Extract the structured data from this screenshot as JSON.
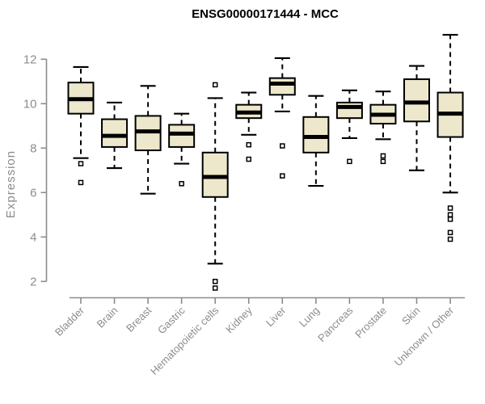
{
  "title": "ENSG00000171444 - MCC",
  "chart_data": {
    "type": "boxplot",
    "title": "ENSG00000171444 - MCC",
    "xlabel": "",
    "ylabel": "Expression",
    "ylim": [
      1.5,
      13.3
    ],
    "yticks": [
      2,
      4,
      6,
      8,
      10,
      12
    ],
    "grid": false,
    "legend": null,
    "categories": [
      "Bladder",
      "Brain",
      "Breast",
      "Gastric",
      "Hematopoietic cells",
      "Kidney",
      "Liver",
      "Lung",
      "Pancreas",
      "Prostate",
      "Skin",
      "Unknown / Other"
    ],
    "boxes": [
      {
        "category": "Bladder",
        "whisker_low": 7.55,
        "q1": 9.55,
        "median": 10.2,
        "q3": 10.95,
        "whisker_high": 11.65,
        "outliers": [
          7.3,
          6.45
        ]
      },
      {
        "category": "Brain",
        "whisker_low": 7.1,
        "q1": 8.05,
        "median": 8.55,
        "q3": 9.3,
        "whisker_high": 10.05,
        "outliers": []
      },
      {
        "category": "Breast",
        "whisker_low": 5.95,
        "q1": 7.9,
        "median": 8.75,
        "q3": 9.45,
        "whisker_high": 10.8,
        "outliers": []
      },
      {
        "category": "Gastric",
        "whisker_low": 7.3,
        "q1": 8.05,
        "median": 8.65,
        "q3": 9.05,
        "whisker_high": 9.55,
        "outliers": [
          6.4
        ]
      },
      {
        "category": "Hematopoietic cells",
        "whisker_low": 2.8,
        "q1": 5.8,
        "median": 6.7,
        "q3": 7.8,
        "whisker_high": 10.25,
        "outliers": [
          10.85,
          2.0,
          1.7
        ]
      },
      {
        "category": "Kidney",
        "whisker_low": 8.6,
        "q1": 9.35,
        "median": 9.6,
        "q3": 9.95,
        "whisker_high": 10.5,
        "outliers": [
          8.15,
          7.5
        ]
      },
      {
        "category": "Liver",
        "whisker_low": 9.65,
        "q1": 10.4,
        "median": 10.9,
        "q3": 11.15,
        "whisker_high": 12.05,
        "outliers": [
          8.1,
          6.75
        ]
      },
      {
        "category": "Lung",
        "whisker_low": 6.3,
        "q1": 7.8,
        "median": 8.5,
        "q3": 9.4,
        "whisker_high": 10.35,
        "outliers": []
      },
      {
        "category": "Pancreas",
        "whisker_low": 8.45,
        "q1": 9.35,
        "median": 9.85,
        "q3": 10.05,
        "whisker_high": 10.6,
        "outliers": [
          7.4
        ]
      },
      {
        "category": "Prostate",
        "whisker_low": 8.4,
        "q1": 9.1,
        "median": 9.5,
        "q3": 9.95,
        "whisker_high": 10.55,
        "outliers": [
          7.65,
          7.4
        ]
      },
      {
        "category": "Skin",
        "whisker_low": 7.0,
        "q1": 9.2,
        "median": 10.05,
        "q3": 11.1,
        "whisker_high": 11.7,
        "outliers": []
      },
      {
        "category": "Unknown / Other",
        "whisker_low": 6.0,
        "q1": 8.5,
        "median": 9.55,
        "q3": 10.5,
        "whisker_high": 13.1,
        "outliers": [
          5.3,
          5.0,
          4.8,
          4.2,
          3.9
        ]
      }
    ],
    "colors": {
      "box_fill": "#EDE8CC",
      "box_border": "#000000",
      "median": "#000000",
      "whisker": "#000000",
      "outlier_stroke": "#000000",
      "outlier_fill": "#FFFFFF",
      "axis": "#8C8C8C",
      "tick_label": "#8C8C8C",
      "title": "#000000",
      "background": "#FFFFFF"
    }
  }
}
